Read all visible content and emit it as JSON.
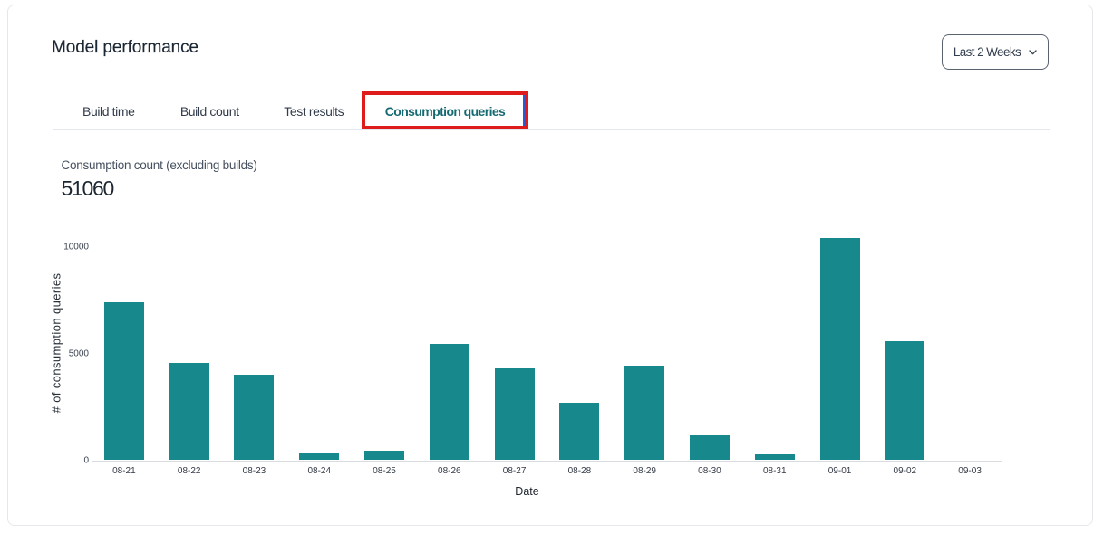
{
  "header": {
    "title": "Model performance",
    "date_range": {
      "value": "Last 2 Weeks",
      "chevron_icon": "chevron-down"
    }
  },
  "tabs": {
    "items": [
      {
        "label": "Build time",
        "active": false
      },
      {
        "label": "Build count",
        "active": false
      },
      {
        "label": "Test results",
        "active": false
      },
      {
        "label": "Consumption queries",
        "active": true
      }
    ]
  },
  "annotation": {
    "type": "highlight-box",
    "target": "Consumption queries tab",
    "color": "#df1c1c",
    "focus_line_color": "#2a5ad1"
  },
  "metric": {
    "label": "Consumption count (excluding builds)",
    "value": "51060"
  },
  "chart_data": {
    "type": "bar",
    "title": "",
    "xlabel": "Date",
    "ylabel": "# of consumption queries",
    "categories": [
      "08-21",
      "08-22",
      "08-23",
      "08-24",
      "08-25",
      "08-26",
      "08-27",
      "08-28",
      "08-29",
      "08-30",
      "08-31",
      "09-01",
      "09-02",
      "09-03"
    ],
    "values": [
      7420,
      4570,
      4020,
      310,
      440,
      5450,
      4310,
      2690,
      4450,
      1150,
      260,
      10400,
      5590,
      0
    ],
    "yticks": [
      0,
      5000,
      10000
    ],
    "ylim": [
      0,
      10420
    ],
    "bar_color": "#17898c",
    "grid": false,
    "legend": false
  }
}
